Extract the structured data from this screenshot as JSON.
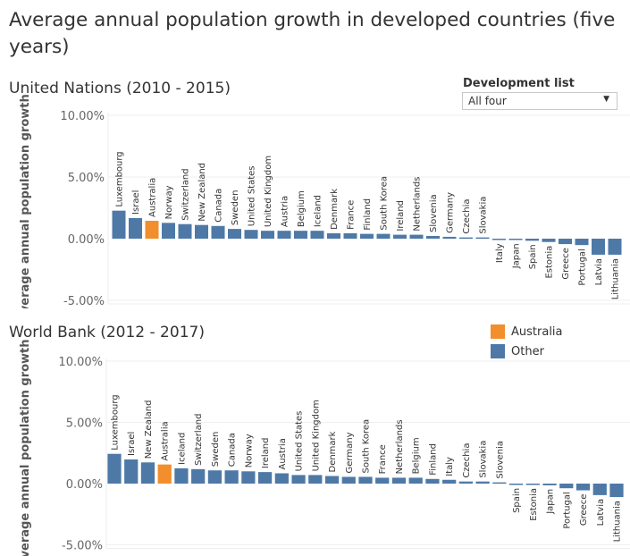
{
  "title": "Average annual population growth in developed countries (five years)",
  "filter": {
    "label": "Development list",
    "value": "All four"
  },
  "legend": [
    {
      "name": "Australia",
      "color": "#f28e2b"
    },
    {
      "name": "Other",
      "color": "#4e79a7"
    }
  ],
  "chart_data": [
    {
      "type": "bar",
      "title": "United Nations (2010 - 2015)",
      "ylabel": "Average annual population growth",
      "ylim": [
        -5,
        10
      ],
      "yticks": [
        "10.00%",
        "5.00%",
        "0.00%",
        "-5.00%"
      ],
      "tick_values": [
        10,
        5,
        0,
        -5
      ],
      "categories": [
        "Luxembourg",
        "Israel",
        "Australia",
        "Norway",
        "Switzerland",
        "New Zealand",
        "Canada",
        "Sweden",
        "United States",
        "United Kingdom",
        "Austria",
        "Belgium",
        "Iceland",
        "Denmark",
        "France",
        "Finland",
        "South Korea",
        "Ireland",
        "Netherlands",
        "Slovenia",
        "Germany",
        "Czechia",
        "Slovakia",
        "Italy",
        "Japan",
        "Spain",
        "Estonia",
        "Greece",
        "Portugal",
        "Latvia",
        "Lithuania"
      ],
      "values": [
        2.27,
        1.67,
        1.45,
        1.28,
        1.18,
        1.11,
        1.03,
        0.79,
        0.71,
        0.64,
        0.64,
        0.64,
        0.64,
        0.44,
        0.44,
        0.39,
        0.39,
        0.32,
        0.32,
        0.22,
        0.15,
        0.1,
        0.1,
        -0.1,
        -0.1,
        -0.17,
        -0.27,
        -0.44,
        -0.52,
        -1.3,
        -1.3
      ]
    },
    {
      "type": "bar",
      "title": "World Bank (2012 - 2017)",
      "ylabel": "Average annual population growth",
      "ylim": [
        -5,
        10
      ],
      "yticks": [
        "10.00%",
        "5.00%",
        "0.00%",
        "-5.00%"
      ],
      "tick_values": [
        10,
        5,
        0,
        -5
      ],
      "categories": [
        "Luxembourg",
        "Israel",
        "New Zealand",
        "Australia",
        "Iceland",
        "Switzerland",
        "Sweden",
        "Canada",
        "Norway",
        "Ireland",
        "Austria",
        "United States",
        "United Kingdom",
        "Denmark",
        "Germany",
        "South Korea",
        "France",
        "Netherlands",
        "Belgium",
        "Finland",
        "Italy",
        "Czechia",
        "Slovakia",
        "Slovenia",
        "Spain",
        "Estonia",
        "Japan",
        "Portugal",
        "Greece",
        "Latvia",
        "Lithuania"
      ],
      "values": [
        2.43,
        1.97,
        1.73,
        1.56,
        1.25,
        1.18,
        1.08,
        1.08,
        1.0,
        0.94,
        0.84,
        0.7,
        0.7,
        0.62,
        0.55,
        0.55,
        0.48,
        0.48,
        0.48,
        0.38,
        0.31,
        0.17,
        0.17,
        0.1,
        -0.07,
        -0.07,
        -0.14,
        -0.38,
        -0.55,
        -0.94,
        -1.1
      ]
    }
  ]
}
